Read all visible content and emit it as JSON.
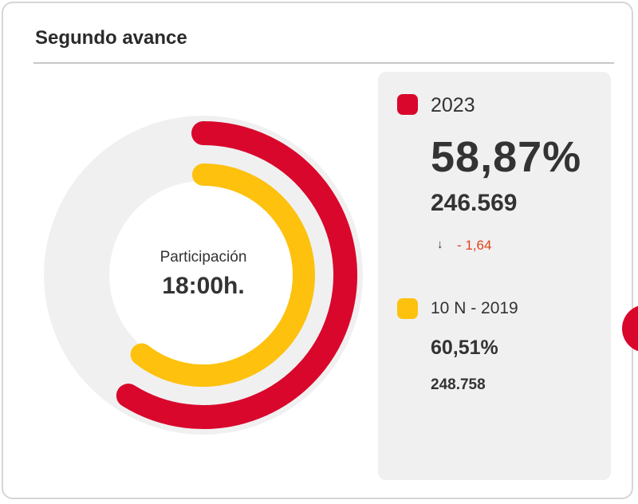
{
  "widget": {
    "title": "Segundo avance",
    "center_label": "Participación",
    "center_time": "18:00h."
  },
  "colors": {
    "current": "#d9072c",
    "previous": "#fdc10e",
    "track": "#f0f0f0",
    "delta": "#e2411b"
  },
  "icons": {
    "delta": "arrow-down-icon",
    "next": "next-circle-button"
  },
  "legend": {
    "current": {
      "label": "2023",
      "percent": "58,87%",
      "votes": "246.569",
      "delta_icon": "↓",
      "delta": "- 1,64"
    },
    "previous": {
      "label": "10 N - 2019",
      "percent": "60,51%",
      "votes": "248.758"
    }
  },
  "chart_data": {
    "type": "donut",
    "title": "Segundo avance",
    "series": [
      {
        "name": "2023",
        "value": 58.87,
        "votes": 246569
      },
      {
        "name": "10 N - 2019",
        "value": 60.51,
        "votes": 248758
      }
    ],
    "max": 100
  }
}
